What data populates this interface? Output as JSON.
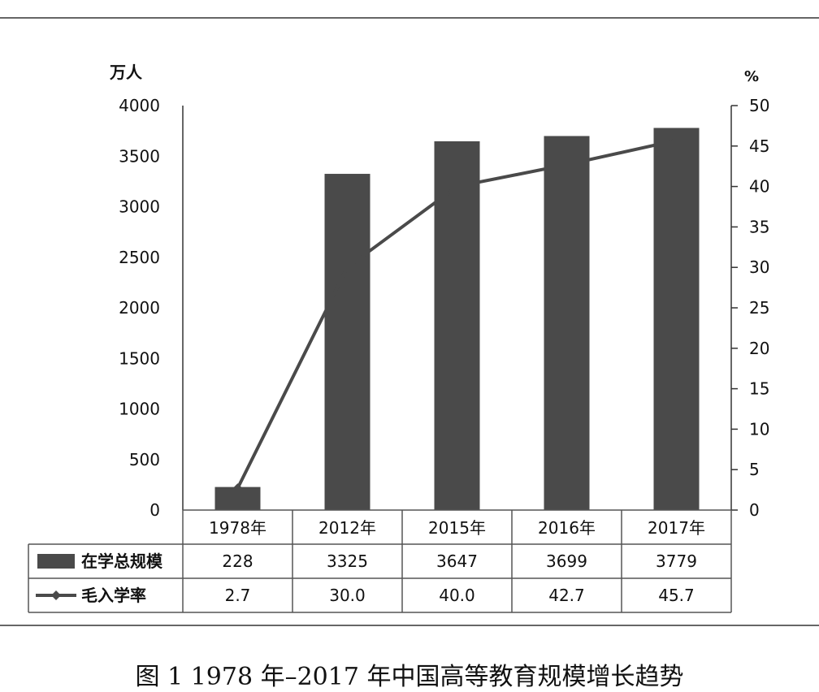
{
  "caption": "图 1 1978 年–2017 年中国高等教育规模增长趋势",
  "chart_data": {
    "type": "bar",
    "categories": [
      "1978年",
      "2012年",
      "2015年",
      "2016年",
      "2017年"
    ],
    "series": [
      {
        "name": "在学总规模",
        "type": "bar",
        "axis": "left",
        "values": [
          228,
          3325,
          3647,
          3699,
          3779
        ],
        "labels": [
          "228",
          "3325",
          "3647",
          "3699",
          "3779"
        ]
      },
      {
        "name": "毛入学率",
        "type": "line",
        "axis": "right",
        "values": [
          2.7,
          30.0,
          40.0,
          42.7,
          45.7
        ],
        "labels": [
          "2.7",
          "30.0",
          "40.0",
          "42.7",
          "45.7"
        ]
      }
    ],
    "y_left": {
      "unit": "万人",
      "ylim": [
        0,
        4000
      ],
      "ticks": [
        0,
        500,
        1000,
        1500,
        2000,
        2500,
        3000,
        3500,
        4000
      ]
    },
    "y_right": {
      "unit": "%",
      "ylim": [
        0,
        50
      ],
      "ticks": [
        0,
        5,
        10,
        15,
        20,
        25,
        30,
        35,
        40,
        45,
        50
      ]
    },
    "legend": "data-table",
    "grid": false,
    "colors": {
      "bar": "#4a4a4a",
      "line": "#4a4a4a",
      "axis": "#333333",
      "text": "#111111",
      "border": "#555555"
    }
  }
}
